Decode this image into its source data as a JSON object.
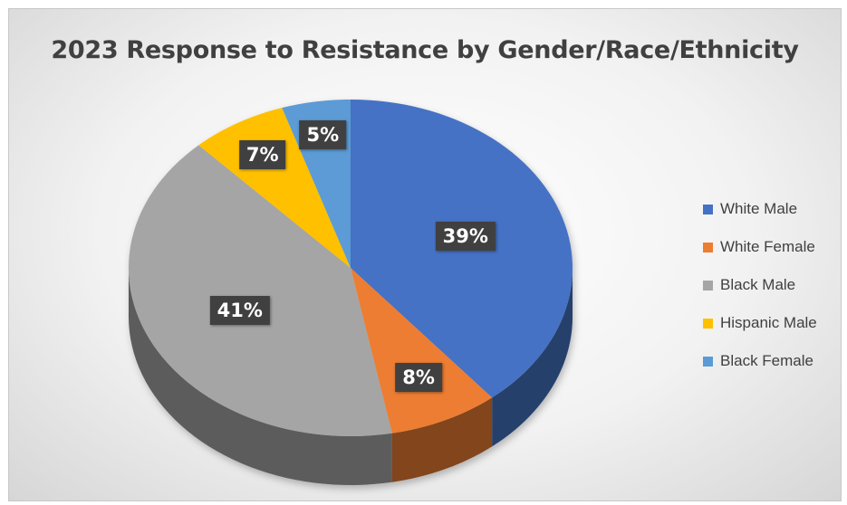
{
  "chart_data": {
    "type": "pie",
    "title": "2023 Response to Resistance by Gender/Race/Ethnicity",
    "legend_position": "right",
    "slices": [
      {
        "label": "White Male",
        "value": 39,
        "display": "39%",
        "color": "#4472C4"
      },
      {
        "label": "White Female",
        "value": 8,
        "display": "8%",
        "color": "#ED7D31"
      },
      {
        "label": "Black Male",
        "value": 41,
        "display": "41%",
        "color": "#A5A5A5"
      },
      {
        "label": "Hispanic Male",
        "value": 7,
        "display": "7%",
        "color": "#FFC000"
      },
      {
        "label": "Black Female",
        "value": 5,
        "display": "5%",
        "color": "#5B9BD5"
      }
    ]
  }
}
